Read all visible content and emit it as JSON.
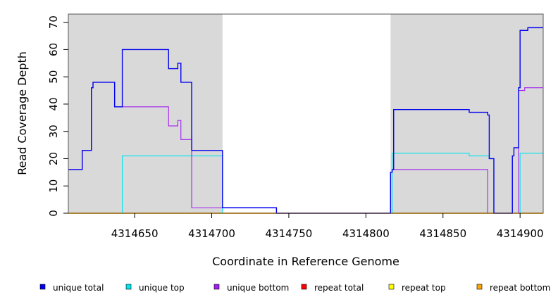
{
  "chart_data": {
    "type": "line",
    "xlabel": "Coordinate in Reference Genome",
    "ylabel": "Read Coverage Depth",
    "xlim": [
      4314607,
      4314915
    ],
    "ylim": [
      0,
      73
    ],
    "xticks": [
      4314650,
      4314700,
      4314750,
      4314800,
      4314850,
      4314900
    ],
    "yticks": [
      0,
      10,
      20,
      30,
      40,
      50,
      60,
      70
    ],
    "shaded_regions": [
      [
        4314607,
        4314707
      ],
      [
        4314816,
        4314915
      ]
    ],
    "shade_color": "#d9d9d9",
    "legend_position": "bottom",
    "series": [
      {
        "name": "unique total",
        "color": "#0000ee",
        "step_points": [
          [
            4314607,
            16
          ],
          [
            4314616,
            23
          ],
          [
            4314622,
            46
          ],
          [
            4314623,
            48
          ],
          [
            4314637,
            39
          ],
          [
            4314642,
            60
          ],
          [
            4314672,
            53
          ],
          [
            4314678,
            55
          ],
          [
            4314680,
            48
          ],
          [
            4314687,
            23
          ],
          [
            4314707,
            2
          ],
          [
            4314742,
            0
          ],
          [
            4314816,
            15
          ],
          [
            4314817,
            16
          ],
          [
            4314818,
            38
          ],
          [
            4314867,
            37
          ],
          [
            4314879,
            36
          ],
          [
            4314880,
            20
          ],
          [
            4314883,
            0
          ],
          [
            4314895,
            21
          ],
          [
            4314896,
            24
          ],
          [
            4314899,
            46
          ],
          [
            4314900,
            67
          ],
          [
            4314905,
            68
          ],
          [
            4314915,
            68
          ]
        ]
      },
      {
        "name": "unique top",
        "color": "#00e5ee",
        "step_points": [
          [
            4314607,
            0
          ],
          [
            4314642,
            21
          ],
          [
            4314707,
            0
          ],
          [
            4314817,
            22
          ],
          [
            4314867,
            21
          ],
          [
            4314880,
            20
          ],
          [
            4314883,
            0
          ],
          [
            4314900,
            22
          ],
          [
            4314915,
            22
          ]
        ]
      },
      {
        "name": "unique bottom",
        "color": "#a020f0",
        "step_points": [
          [
            4314607,
            16
          ],
          [
            4314616,
            23
          ],
          [
            4314622,
            46
          ],
          [
            4314623,
            48
          ],
          [
            4314637,
            39
          ],
          [
            4314672,
            32
          ],
          [
            4314678,
            34
          ],
          [
            4314680,
            27
          ],
          [
            4314687,
            2
          ],
          [
            4314707,
            2
          ],
          [
            4314742,
            0
          ],
          [
            4314816,
            15
          ],
          [
            4314817,
            16
          ],
          [
            4314879,
            0
          ],
          [
            4314899,
            45
          ],
          [
            4314903,
            46
          ],
          [
            4314915,
            46
          ]
        ]
      },
      {
        "name": "repeat total",
        "color": "#ff0000",
        "step_points": [
          [
            4314607,
            0
          ],
          [
            4314915,
            0
          ]
        ]
      },
      {
        "name": "repeat top",
        "color": "#ffff00",
        "step_points": [
          [
            4314607,
            0
          ],
          [
            4314915,
            0
          ]
        ]
      },
      {
        "name": "repeat bottom",
        "color": "#ffa500",
        "step_points": [
          [
            4314607,
            0
          ],
          [
            4314915,
            0
          ]
        ]
      }
    ]
  }
}
